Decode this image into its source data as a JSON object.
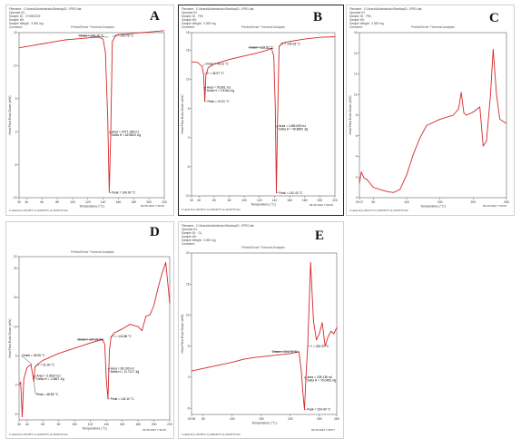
{
  "colors": {
    "curve": "#d62728",
    "annotation": "#000000",
    "axis": "#444444",
    "grid": "#e6e6e6"
  },
  "chart_data": [
    {
      "id": "A",
      "type": "line",
      "panel_letter": "A",
      "header_lines": [
        "Filename:  C:\\Users\\Administrator\\Desktop\\D...\\PRO.dat",
        "Operator ID:",
        "Sample ID:   07/05/2022",
        "Sample Wt:",
        "Sample Weight:  3.000 mg",
        "Comment:"
      ],
      "title": "PerkinElmer Thermal Analysis",
      "xlabel": "Temperature (°C)",
      "ylabel": "Heat Flow Endo Down (mW)",
      "xlim": [
        30,
        220
      ],
      "ylim": [
        -10,
        15
      ],
      "xticks": [
        30,
        40,
        60,
        80,
        100,
        120,
        140,
        160,
        180,
        200,
        220
      ],
      "yticks": [
        15,
        10,
        5,
        0,
        -5,
        -10
      ],
      "x": [
        30,
        40,
        50,
        60,
        70,
        80,
        90,
        100,
        110,
        120,
        130,
        135,
        140,
        143,
        146,
        148,
        150,
        152,
        156,
        160,
        170,
        180,
        190,
        200,
        210,
        220
      ],
      "y": [
        12.7,
        12.9,
        13.1,
        13.3,
        13.5,
        13.7,
        13.9,
        14.0,
        14.1,
        14.2,
        14.3,
        14.3,
        14.0,
        12.0,
        2.0,
        -9.2,
        0.0,
        13.6,
        14.5,
        14.7,
        14.8,
        14.9,
        15.0,
        15.1,
        15.2,
        15.3
      ],
      "annotations": [
        {
          "text": "Onset = 146.76 °C",
          "x": 146.76,
          "y": 14.3,
          "dx": -33,
          "dy": -2,
          "anchor": "start"
        },
        {
          "text": "Y = 154.75 °C",
          "x": 152,
          "y": 14.3,
          "dx": 2,
          "dy": -2,
          "anchor": "start"
        },
        {
          "text": "Area = 2477.185 mJ",
          "x": 148,
          "y": 0,
          "dx": 2,
          "dy": 0,
          "anchor": "start"
        },
        {
          "text": "Delta H = 82.5620 J/g",
          "x": 148,
          "y": 0,
          "dx": 2,
          "dy": 3.6,
          "anchor": "start"
        },
        {
          "text": "Peak = 149.00 °C",
          "x": 148,
          "y": -9.2,
          "dx": 2,
          "dy": 0,
          "anchor": "start"
        }
      ],
      "footer_left": "1  Heat from 30.00°C to 220.00°C at 10.00°C/min",
      "footer_right": "09.05.2022  7:30:09"
    },
    {
      "id": "B",
      "type": "line",
      "panel_letter": "B",
      "header_lines": [
        "Filename:  C:\\Users\\Administrator\\Desktop\\D...\\PRO.dat",
        "Operator ID:",
        "Sample ID:   PBI",
        "Sample Wt:",
        "Sample Weight:  3.000 mg",
        "Comment:"
      ],
      "title": "PerkinElmer Thermal Analysis",
      "xlabel": "Temperature (°C)",
      "ylabel": "Heat Flow Endo Down (mW)",
      "xlim": [
        30,
        220
      ],
      "ylim": [
        -10,
        18
      ],
      "xticks": [
        30,
        40,
        60,
        80,
        100,
        120,
        140,
        160,
        180,
        200,
        220
      ],
      "yticks": [
        18,
        15,
        10,
        5,
        0,
        -5,
        -10
      ],
      "x": [
        30,
        38,
        44,
        46,
        47.61,
        49,
        52,
        60,
        80,
        100,
        120,
        130,
        136,
        139,
        141,
        142.43,
        144,
        146,
        150,
        160,
        180,
        200,
        220
      ],
      "y": [
        13.0,
        12.9,
        12.2,
        10.8,
        6.2,
        10.6,
        12.0,
        12.6,
        13.4,
        14.0,
        14.6,
        15.0,
        15.3,
        14.0,
        5.0,
        -9.5,
        3.0,
        15.6,
        16.2,
        16.5,
        16.9,
        17.2,
        17.3
      ],
      "annotations": [
        {
          "text": "Onset = 45.12 °C",
          "x": 45.12,
          "y": 12.2,
          "dx": 2,
          "dy": -3,
          "anchor": "start"
        },
        {
          "text": "Y = 46.97 °C",
          "x": 47,
          "y": 11.0,
          "dx": 2,
          "dy": 0,
          "anchor": "start"
        },
        {
          "text": "Area = 78.601 mJ",
          "x": 47,
          "y": 8.6,
          "dx": 2,
          "dy": 0,
          "anchor": "start"
        },
        {
          "text": "Delta H = 2.5164 J/g",
          "x": 47,
          "y": 8.6,
          "dx": 2,
          "dy": 3.5,
          "anchor": "start"
        },
        {
          "text": "Peak = 47.61 °C",
          "x": 47.61,
          "y": 6.2,
          "dx": 2,
          "dy": 0,
          "anchor": "start"
        },
        {
          "text": "Onset = 137.57 °C",
          "x": 137.57,
          "y": 15.3,
          "dx": -27,
          "dy": -1,
          "anchor": "start"
        },
        {
          "text": "Y = 146.33 °C",
          "x": 146,
          "y": 15.6,
          "dx": 2,
          "dy": -3,
          "anchor": "start"
        },
        {
          "text": "Area = 1495.009 mJ",
          "x": 142.43,
          "y": 2.0,
          "dx": 2,
          "dy": 0,
          "anchor": "start"
        },
        {
          "text": "Delta H = 49.8650 J/g",
          "x": 142.43,
          "y": 2.0,
          "dx": 2,
          "dy": 3.5,
          "anchor": "start"
        },
        {
          "text": "Peak = 142.43 °C",
          "x": 142.43,
          "y": -9.5,
          "dx": 2,
          "dy": 0,
          "anchor": "start"
        }
      ],
      "footer_left": "1  Heat from 30.00°C to 220.00°C at 10.00°C/min",
      "footer_right": "09.05.2022  7:36:09"
    },
    {
      "id": "C",
      "type": "line",
      "panel_letter": "C",
      "header_lines": [
        "Filename:  C:\\Users\\Administrator\\Desktop\\D...\\PRO.dat",
        "Operator ID:",
        "Sample ID:   PBI",
        "Sample Wt:",
        "Sample Weight:  3.000 mg",
        "Comment:"
      ],
      "title": "PerkinElmer Thermal Analysis",
      "xlabel": "Temperature (°C)",
      "ylabel": "Heat Flow Endo Down (mW)",
      "xlim": [
        29.07,
        250
      ],
      "ylim": [
        0,
        16
      ],
      "xticks": [
        29.07,
        50,
        100,
        150,
        200,
        250
      ],
      "yticks": [
        16,
        14,
        12,
        10,
        8,
        6,
        4,
        2,
        0
      ],
      "x": [
        29.07,
        32,
        36,
        40,
        50,
        60,
        70,
        80,
        90,
        100,
        110,
        120,
        130,
        150,
        170,
        178,
        182,
        186,
        190,
        200,
        210,
        215,
        220,
        226,
        230,
        235,
        240,
        245,
        250
      ],
      "y": [
        1.4,
        2.5,
        1.9,
        1.8,
        1.0,
        0.8,
        0.6,
        0.5,
        0.8,
        2.2,
        4.2,
        5.8,
        7.0,
        7.6,
        8.0,
        8.6,
        10.2,
        8.2,
        8.0,
        8.3,
        8.8,
        5.0,
        5.5,
        10.0,
        14.4,
        10.0,
        7.6,
        7.4,
        7.2
      ],
      "annotations": [],
      "footer_left": "1  Heat from 29.07°C to 250.00°C at 10.00°C/min",
      "footer_right": "09.05.2022  7:30:09"
    },
    {
      "id": "D",
      "type": "line",
      "panel_letter": "D",
      "header_lines": [],
      "title": "PerkinElmer Thermal Analysis",
      "xlabel": "Temperature (°C)",
      "ylabel": "Heat Flow Endo Down (mW)",
      "xlim": [
        30,
        220
      ],
      "ylim": [
        -6,
        22
      ],
      "xticks": [
        30,
        40,
        60,
        80,
        100,
        120,
        140,
        160,
        180,
        200,
        220
      ],
      "yticks": [
        22,
        20,
        15,
        10,
        5,
        0,
        -5
      ],
      "x": [
        30,
        32,
        34,
        36,
        40,
        45,
        48.5,
        50,
        53,
        60,
        80,
        100,
        120,
        130,
        135,
        138,
        140,
        142.1,
        144,
        146,
        150,
        160,
        170,
        180,
        185,
        190,
        195,
        200,
        205,
        210,
        215,
        220
      ],
      "y": [
        0.0,
        0.5,
        -5.5,
        1.0,
        3.0,
        3.5,
        0.6,
        3.0,
        3.5,
        4.2,
        5.4,
        6.3,
        7.2,
        7.6,
        7.8,
        7.0,
        1.0,
        -2.4,
        6.0,
        8.2,
        8.9,
        9.6,
        10.4,
        10.0,
        9.3,
        11.8,
        12.0,
        13.6,
        16.5,
        19.0,
        21.0,
        14.0
      ],
      "annotations": [
        {
          "text": "Onset = 48.26 °C",
          "x": 46.5,
          "y": 3.5,
          "dx": -12,
          "dy": -10,
          "anchor": "start"
        },
        {
          "text": "Y = 51.90 °C",
          "x": 50,
          "y": 3.0,
          "dx": 2,
          "dy": -3,
          "anchor": "start"
        },
        {
          "text": "Area = 3.9514 mJ",
          "x": 49,
          "y": 1.6,
          "dx": 2,
          "dy": 0,
          "anchor": "start"
        },
        {
          "text": "Delta H = 1.2667 J/g",
          "x": 49,
          "y": 1.6,
          "dx": 2,
          "dy": 3.5,
          "anchor": "start"
        },
        {
          "text": "Peak = 48.56 °C",
          "x": 48.5,
          "y": 0.6,
          "dx": 2,
          "dy": 14,
          "anchor": "start"
        },
        {
          "text": "Onset = 137.37 °C",
          "x": 137.37,
          "y": 7.8,
          "dx": -30,
          "dy": 0,
          "anchor": "start"
        },
        {
          "text": "Y = 144.88 °C",
          "x": 145,
          "y": 8.2,
          "dx": 2,
          "dy": -1,
          "anchor": "start"
        },
        {
          "text": "Area = 36.100 mJ",
          "x": 142.1,
          "y": 2.8,
          "dx": 2,
          "dy": 0,
          "anchor": "start"
        },
        {
          "text": "Delta H = 11.7117 J/g",
          "x": 142.1,
          "y": 2.8,
          "dx": 2,
          "dy": 3.5,
          "anchor": "start"
        },
        {
          "text": "Peak = 142.10 °C",
          "x": 142.1,
          "y": -2.4,
          "dx": 2,
          "dy": 0,
          "anchor": "start"
        }
      ],
      "footer_left": "1  Heat from 30.00°C to 220.00°C at 10.00°C/min",
      "footer_right": "09.05.2022  7:36:09"
    },
    {
      "id": "E",
      "type": "line",
      "panel_letter": "E",
      "header_lines": [
        "Filename:  C:\\Users\\Administrator\\Desktop\\D...\\PRO.dat",
        "Operator ID:",
        "Sample ID:   GL",
        "Sample Wt:",
        "Sample Weight:  3.000 mg",
        "Comment:"
      ],
      "title": "PerkinElmer Thermal Analysis",
      "xlabel": "Temperature (°C)",
      "ylabel": "Heat Flow Endo Down (mW)",
      "xlim": [
        29.95,
        280
      ],
      "ylim": [
        -6,
        20
      ],
      "xticks": [
        29.95,
        50,
        100,
        150,
        200,
        250,
        280
      ],
      "yticks": [
        20,
        15,
        10,
        5,
        0,
        -5
      ],
      "x": [
        29.95,
        40,
        60,
        80,
        100,
        120,
        140,
        160,
        180,
        200,
        210,
        215,
        219,
        222,
        224.4,
        227,
        230,
        235,
        240,
        245,
        250,
        255,
        260,
        265,
        270,
        275,
        280
      ],
      "y": [
        1.0,
        1.2,
        1.6,
        2.0,
        2.4,
        2.9,
        3.2,
        3.4,
        3.6,
        3.8,
        4.0,
        4.1,
        1.0,
        -2.8,
        -5.2,
        0.0,
        5.0,
        18.5,
        9.0,
        6.0,
        7.0,
        8.8,
        5.0,
        6.5,
        7.4,
        7.0,
        8.0
      ],
      "annotations": [
        {
          "text": "Onset = 214.70 °C",
          "x": 214.7,
          "y": 4.1,
          "dx": -30,
          "dy": 0,
          "anchor": "start"
        },
        {
          "text": "Y = 230.01 °C",
          "x": 230,
          "y": 5.0,
          "dx": 2,
          "dy": 0,
          "anchor": "start"
        },
        {
          "text": "Area = 228.136 mJ",
          "x": 224.4,
          "y": 0.0,
          "dx": 2,
          "dy": 0,
          "anchor": "start"
        },
        {
          "text": "Delta H = 76.0453 J/g",
          "x": 224.4,
          "y": 0.0,
          "dx": 2,
          "dy": 3.5,
          "anchor": "start"
        },
        {
          "text": "Peak = 224.40 °C",
          "x": 224.4,
          "y": -5.2,
          "dx": 2,
          "dy": 0,
          "anchor": "start"
        }
      ],
      "footer_left": "1  Heat from 29.95°C to 280.00°C at 10.00°C/min",
      "footer_right": "09.05.2022  7:36:07"
    }
  ]
}
